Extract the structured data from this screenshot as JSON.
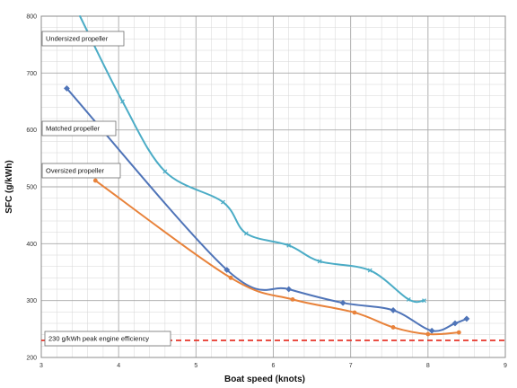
{
  "chart_data": {
    "type": "line",
    "xlabel": "Boat speed (knots)",
    "ylabel": "SFC (g/kWh)",
    "xlim": [
      3,
      9
    ],
    "ylim": [
      200,
      800
    ],
    "x_ticks": [
      "3",
      "4",
      "5",
      "6",
      "7",
      "8",
      "9"
    ],
    "y_ticks": [
      "200",
      "300",
      "400",
      "500",
      "600",
      "700",
      "800"
    ],
    "grid": true,
    "series": [
      {
        "key": "undersized",
        "color": "#4bacc6",
        "points": [
          [
            3.5,
            800
          ],
          [
            4.05,
            650
          ],
          [
            4.6,
            527
          ],
          [
            5.35,
            473
          ],
          [
            5.65,
            418
          ],
          [
            6.2,
            397
          ],
          [
            6.6,
            369
          ],
          [
            7.25,
            353
          ],
          [
            7.75,
            302
          ],
          [
            7.95,
            300
          ]
        ]
      },
      {
        "key": "matched",
        "color": "#4f74b8",
        "points": [
          [
            3.33,
            673
          ],
          [
            5.4,
            354
          ],
          [
            6.2,
            320
          ],
          [
            6.9,
            296
          ],
          [
            7.55,
            283
          ],
          [
            8.05,
            247
          ],
          [
            8.35,
            260
          ],
          [
            8.5,
            268
          ]
        ]
      },
      {
        "key": "oversized",
        "color": "#e8823a",
        "points": [
          [
            3.7,
            511
          ],
          [
            5.45,
            340
          ],
          [
            6.25,
            302
          ],
          [
            7.05,
            279
          ],
          [
            7.55,
            253
          ],
          [
            8.0,
            241
          ],
          [
            8.4,
            244
          ]
        ]
      }
    ],
    "annotations": [
      {
        "key": "undersized",
        "text": "Undersized propeller"
      },
      {
        "key": "matched",
        "text": "Matched propeller"
      },
      {
        "key": "oversized",
        "text": "Oversized propeller"
      },
      {
        "key": "peak",
        "text": "230 g/kWh peak engine efficiency"
      }
    ],
    "reference_line": {
      "y": 230,
      "color": "#e8352a"
    }
  }
}
